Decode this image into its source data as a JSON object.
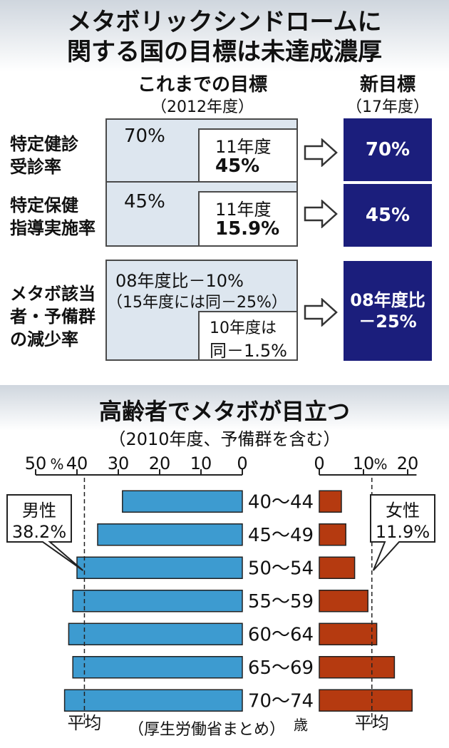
{
  "top": {
    "title_line1": "メタボリックシンドロームに",
    "title_line2": "関する国の目標は未達成濃厚",
    "old_goal_label": "これまでの目標",
    "old_goal_year": "（2012年度）",
    "new_goal_label": "新目標",
    "new_goal_year": "（17年度）",
    "rows": [
      {
        "label_line1": "特定健診",
        "label_line2": "受診率",
        "label_line3": "",
        "old_target_line1": "70%",
        "old_target_line2": "",
        "actual_line1": "11年度",
        "actual_line2": "45%",
        "new_target_line1": "70%",
        "new_target_line2": ""
      },
      {
        "label_line1": "特定保健",
        "label_line2": "指導実施率",
        "label_line3": "",
        "old_target_line1": "45%",
        "old_target_line2": "",
        "actual_line1": "11年度",
        "actual_line2": "15.9%",
        "new_target_line1": "45%",
        "new_target_line2": ""
      },
      {
        "label_line1": "メタボ該当",
        "label_line2": "者・予備群",
        "label_line3": "の減少率",
        "old_target_line1": "08年度比－10%",
        "old_target_line2": "（15年度には同－25%）",
        "actual_line1": "10年度は",
        "actual_line2": "同－1.5%",
        "new_target_line1": "08年度比",
        "new_target_line2": "－25%"
      }
    ]
  },
  "chart_data": {
    "type": "bar",
    "title": "高齢者でメタボが目立つ",
    "subtitle": "（2010年度、予備群を含む）",
    "categories": [
      "40～44",
      "45～49",
      "50～54",
      "55～59",
      "60～64",
      "65～69",
      "70～74"
    ],
    "category_unit": "歳",
    "series": [
      {
        "name": "男性",
        "values": [
          29,
          35,
          40,
          41,
          42,
          41,
          43
        ],
        "color": "#3d9bd0"
      },
      {
        "name": "女性",
        "values": [
          5,
          6,
          8,
          11,
          13,
          17,
          21
        ],
        "color": "#b53a10"
      }
    ],
    "male_axis": {
      "ticks": [
        "50",
        "40",
        "30",
        "20",
        "10",
        "0"
      ],
      "tick_values": [
        50,
        40,
        30,
        20,
        10,
        0
      ],
      "unit": "%",
      "range": [
        0,
        50
      ]
    },
    "female_axis": {
      "ticks": [
        "0",
        "10",
        "20"
      ],
      "tick_values": [
        0,
        10,
        20
      ],
      "unit": "%",
      "range": [
        0,
        22
      ]
    },
    "averages": [
      {
        "series": "男性",
        "value": 38.2,
        "label_line1": "男性",
        "label_line2": "38.2%",
        "caption": "平均"
      },
      {
        "series": "女性",
        "value": 11.9,
        "label_line1": "女性",
        "label_line2": "11.9%",
        "caption": "平均"
      }
    ],
    "source": "（厚生労働省まとめ）"
  }
}
